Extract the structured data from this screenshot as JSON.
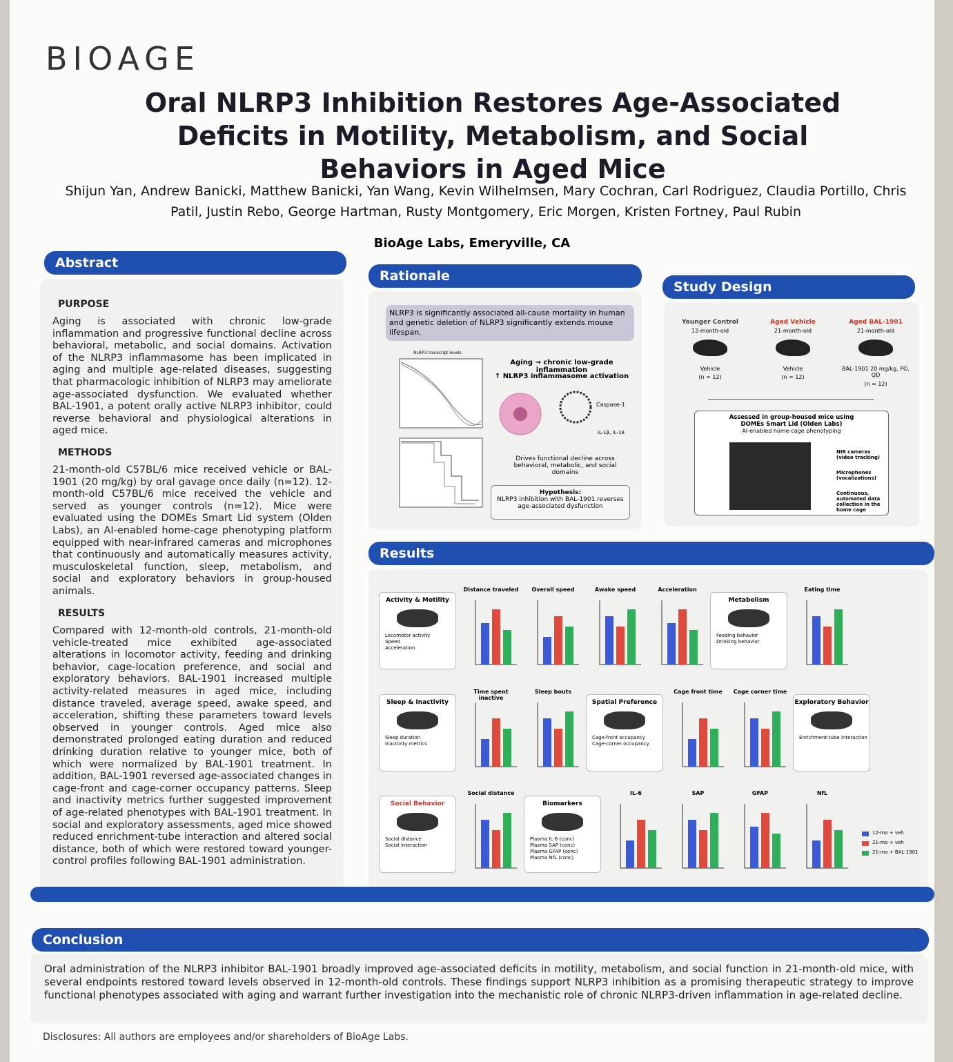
{
  "header": {
    "logo": "BIOAGE",
    "title": "Oral NLRP3 Inhibition Restores Age-Associated Deficits in Motility, Metabolism, and Social Behaviors in Aged Mice",
    "authors": "Shijun Yan, Andrew Banicki, Matthew Banicki, Yan Wang, Kevin Wilhelmsen, Mary Cochran, Carl Rodriguez, Claudia Portillo, Chris Patil, Justin Rebo, George Hartman, Rusty Montgomery, Eric Morgen, Kristen Fortney, Paul Rubin",
    "affiliation": "BioAge Labs, Emeryville, CA"
  },
  "abstract": {
    "heading": "Abstract",
    "sections": [
      {
        "heading": "PURPOSE",
        "text": "Aging is associated with chronic low-grade inflammation and progressive functional decline across behavioral, metabolic, and social domains. Activation of the NLRP3 inflammasome has been implicated in aging and multiple age-related diseases, suggesting that pharmacologic inhibition of NLRP3 may ameliorate age-associated dysfunction. We evaluated whether BAL-1901, a potent orally active NLRP3 inhibitor, could reverse behavioral and physiological alterations in aged mice."
      },
      {
        "heading": "METHODS",
        "text": "21-month-old C57BL/6 mice received vehicle or BAL-1901 (20 mg/kg) by oral gavage once daily (n=12). 12-month-old C57BL/6 mice received the vehicle and served as younger controls (n=12). Mice were evaluated using the DOMEs Smart Lid system (Olden Labs), an AI-enabled home-cage phenotyping platform equipped with near-infrared cameras and microphones that continuously and automatically measures activity, musculoskeletal function, sleep, metabolism, and social and exploratory behaviors in group-housed animals."
      },
      {
        "heading": "RESULTS",
        "text": "Compared with 12-month-old controls, 21-month-old vehicle-treated mice exhibited age-associated alterations in locomotor activity, feeding and drinking behavior, cage-location preference, and social and exploratory behaviors. BAL-1901 increased multiple activity-related measures in aged mice, including distance traveled, average speed, awake speed, and acceleration, shifting these parameters toward levels observed in younger controls. Aged mice also demonstrated prolonged eating duration and reduced drinking duration relative to younger mice, both of which were normalized by BAL-1901 treatment. In addition, BAL-1901 reversed age-associated changes in cage-front and cage-corner occupancy patterns. Sleep and inactivity metrics further suggested improvement of age-related phenotypes with BAL-1901 treatment. In social and exploratory assessments, aged mice showed reduced enrichment-tube interaction and altered social distance, both of which were restored toward younger-control profiles following BAL-1901 administration."
      }
    ]
  },
  "rationale": {
    "heading": "Rationale",
    "summary": "NLRP3 is significantly associated all-cause mortality in human and genetic deletion of NLRP3 significantly extends mouse lifespan.",
    "plot_title": "NLRP3 transcript levels",
    "lines": [
      "Aging → chronic low-grade inflammation",
      "↑ NLRP3 inflammasome activation"
    ],
    "caspase": "Caspase-1",
    "cytokines": "IL-1β, IL-18",
    "decline": "Drives functional decline across behavioral, metabolic, and social domains",
    "hypothesis_title": "Hypothesis:",
    "hypothesis": "NLRP3 inhibition with BAL-1901 reverses age-associated dysfunction"
  },
  "study_design": {
    "heading": "Study Design",
    "groups": [
      {
        "name": "Younger Control",
        "age": "12-month-old",
        "treatment": "Vehicle",
        "n": "(n = 12)"
      },
      {
        "name": "Aged Vehicle",
        "age": "21-month-old",
        "treatment": "Vehicle",
        "n": "(n = 12)"
      },
      {
        "name": "Aged BAL-1901",
        "age": "21-month-old",
        "treatment": "BAL-1901 20 mg/kg, PO, QD",
        "n": "(n = 12)"
      }
    ],
    "assessment": "Assessed in group-housed mice using DOMEs Smart Lid (Olden Labs)",
    "platform": "AI-enabled home-cage phenotyping",
    "features": [
      "NIR cameras (video tracking)",
      "Microphones (vocalizations)",
      "Continuous, automated data collection in the home cage"
    ]
  },
  "results": {
    "heading": "Results",
    "rows": [
      [
        {
          "title": "Activity & Motility",
          "items": [
            "Locomotor activity",
            "Speed",
            "Acceleration"
          ]
        },
        {
          "title": "Distance traveled"
        },
        {
          "title": "Overall speed"
        },
        {
          "title": "Awake speed"
        },
        {
          "title": "Acceleration"
        },
        {
          "title": "Metabolism",
          "items": [
            "Feeding behavior",
            "Drinking behavior"
          ]
        },
        {
          "title": "Eating time"
        }
      ],
      [
        {
          "title": "Sleep & Inactivity",
          "items": [
            "Sleep duration",
            "Inactivity metrics"
          ]
        },
        {
          "title": "Time spent inactive"
        },
        {
          "title": "Sleep bouts"
        },
        {
          "title": "Spatial Preference",
          "items": [
            "Cage-front occupancy",
            "Cage-corner occupancy"
          ]
        },
        {
          "title": "Cage front time"
        },
        {
          "title": "Cage corner time"
        },
        {
          "title": "Exploratory Behavior",
          "items": [
            "Enrichment-tube interaction"
          ]
        }
      ],
      [
        {
          "title": "Social Behavior",
          "items": [
            "Social distance",
            "Social interaction"
          ]
        },
        {
          "title": "Social distance"
        },
        {
          "title": "Biomarkers",
          "items": [
            "Plasma IL-6 (conc)",
            "Plasma SAP (conc)",
            "Plasma GFAP (conc)",
            "Plasma NfL (conc)"
          ]
        },
        {
          "title": "IL-6"
        },
        {
          "title": "SAP"
        },
        {
          "title": "GFAP"
        },
        {
          "title": "NfL"
        }
      ]
    ],
    "legend": [
      {
        "name": "12-mo + veh",
        "color": "#3b5bd6"
      },
      {
        "name": "21-mo + veh",
        "color": "#e04a3c"
      },
      {
        "name": "21-mo + BAL-1901",
        "color": "#2fae5a"
      }
    ]
  },
  "conclusion": {
    "heading": "Conclusion",
    "text": "Oral administration of the NLRP3 inhibitor BAL-1901 broadly improved age-associated deficits in motility, metabolism, and social function in 21-month-old mice, with several endpoints restored toward levels observed in 12-month-old controls. These findings support NLRP3 inhibition as a promising therapeutic strategy to improve functional phenotypes associated with aging and warrant further investigation into the mechanistic role of chronic NLRP3-driven inflammation in age-related decline."
  },
  "disclosures": "Disclosures: All authors are employees and/or shareholders of BioAge Labs."
}
